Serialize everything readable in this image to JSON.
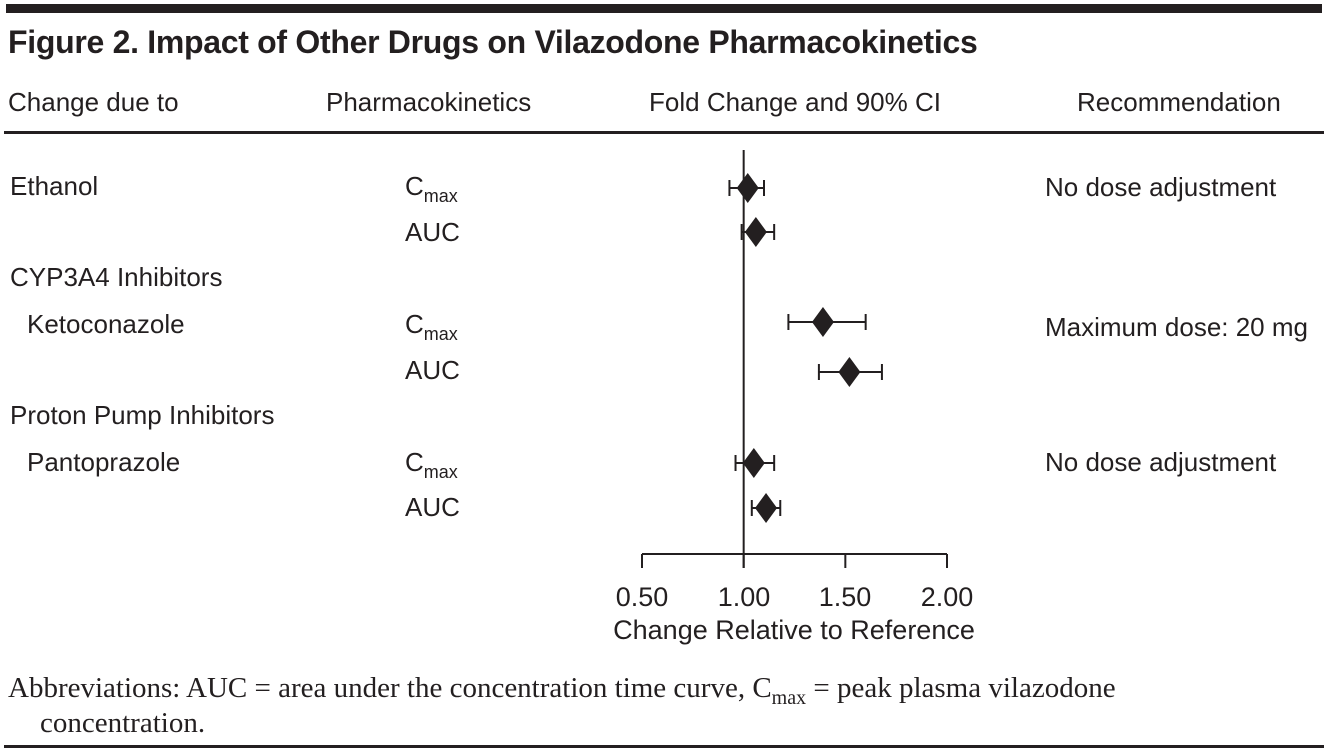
{
  "title": "Figure 2. Impact of Other Drugs on Vilazodone Pharmacokinetics",
  "columns": {
    "change_due_to": "Change due to",
    "pharmacokinetics": "Pharmacokinetics",
    "fold_change": "Fold Change and 90% CI",
    "recommendation": "Recommendation"
  },
  "groups": {
    "cyp3a4": "CYP3A4 Inhibitors",
    "ppi": "Proton Pump Inhibitors"
  },
  "drugs": {
    "ethanol": {
      "label": "Ethanol",
      "recommendation": "No dose adjustment"
    },
    "ketoconazole": {
      "label": "Ketoconazole",
      "recommendation": "Maximum dose: 20 mg"
    },
    "pantoprazole": {
      "label": "Pantoprazole",
      "recommendation": "No dose adjustment"
    }
  },
  "pk": {
    "cmax_base": "C",
    "cmax_sub": "max",
    "auc": "AUC"
  },
  "axis": {
    "tick_labels": [
      "0.50",
      "1.00",
      "1.50",
      "2.00"
    ],
    "title": "Change Relative to Reference"
  },
  "footer": {
    "line1_pre": "Abbreviations: AUC = area under the concentration time curve, C",
    "line1_sub": "max",
    "line1_post": " = peak plasma vilazodone",
    "line2": "concentration."
  },
  "colors": {
    "ink": "#231f20",
    "background": "#ffffff"
  },
  "chart_data": {
    "type": "forest",
    "xlabel": "Change Relative to Reference",
    "xlim": [
      0.5,
      2.0
    ],
    "x_ticks": [
      0.5,
      1.0,
      1.5,
      2.0
    ],
    "x_tick_labels": [
      "0.50",
      "1.00",
      "1.50",
      "2.00"
    ],
    "reference_line": 1.0,
    "marker": "diamond",
    "ci_level": "90%",
    "rows": [
      {
        "group": null,
        "drug": "Ethanol",
        "param": "Cmax",
        "estimate": 1.02,
        "ci_low": 0.93,
        "ci_high": 1.1,
        "recommendation": "No dose adjustment"
      },
      {
        "group": null,
        "drug": "Ethanol",
        "param": "AUC",
        "estimate": 1.06,
        "ci_low": 0.99,
        "ci_high": 1.15
      },
      {
        "group": "CYP3A4 Inhibitors",
        "drug": "Ketoconazole",
        "param": "Cmax",
        "estimate": 1.39,
        "ci_low": 1.22,
        "ci_high": 1.6,
        "recommendation": "Maximum dose: 20 mg"
      },
      {
        "group": "CYP3A4 Inhibitors",
        "drug": "Ketoconazole",
        "param": "AUC",
        "estimate": 1.52,
        "ci_low": 1.37,
        "ci_high": 1.68
      },
      {
        "group": "Proton Pump Inhibitors",
        "drug": "Pantoprazole",
        "param": "Cmax",
        "estimate": 1.05,
        "ci_low": 0.96,
        "ci_high": 1.15,
        "recommendation": "No dose adjustment"
      },
      {
        "group": "Proton Pump Inhibitors",
        "drug": "Pantoprazole",
        "param": "AUC",
        "estimate": 1.11,
        "ci_low": 1.04,
        "ci_high": 1.18
      }
    ]
  }
}
